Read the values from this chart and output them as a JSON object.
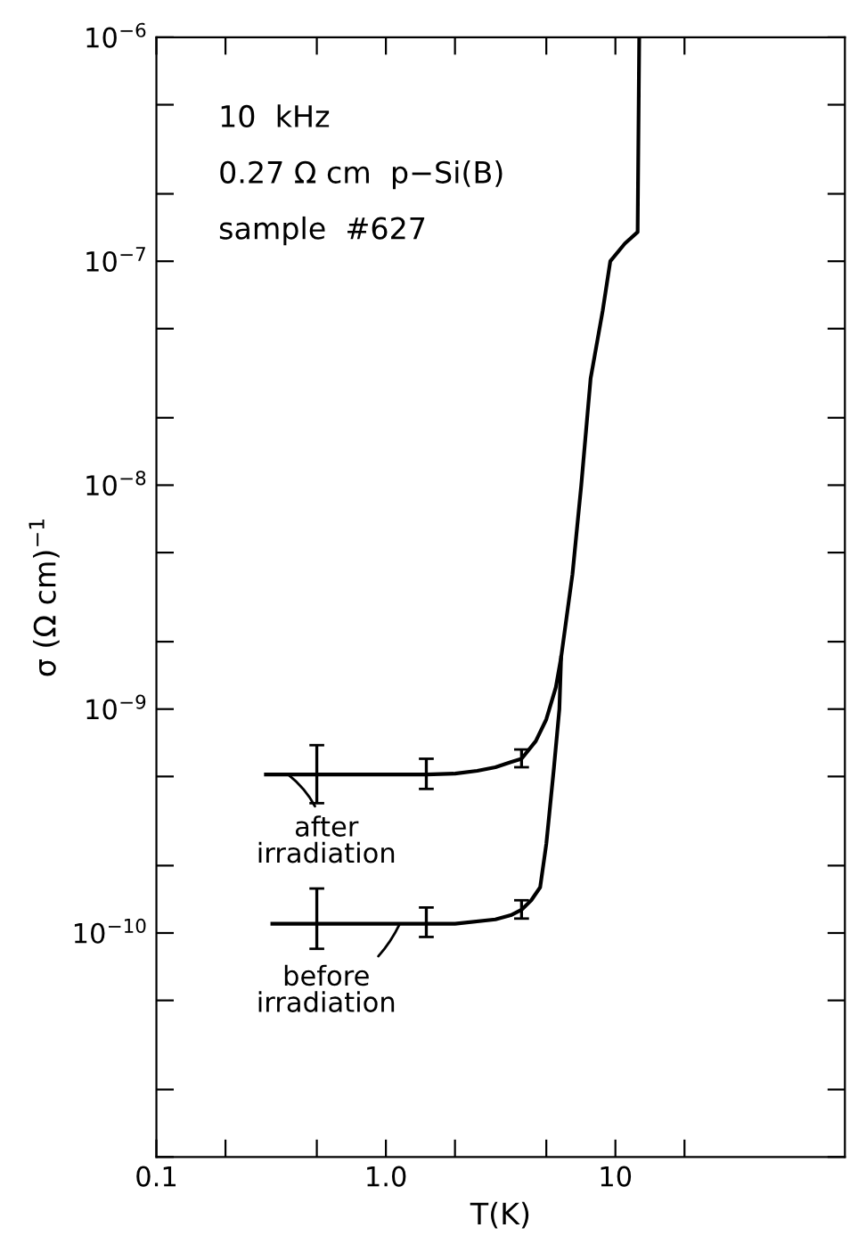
{
  "chart_data": {
    "type": "line",
    "xlabel": "T(K)",
    "ylabel": "σ (Ω cm)$^{−1}$",
    "log": "xy",
    "annotations": [
      "10  kHz",
      "0.27 Ω cm  p−Si(B)",
      "sample  #627"
    ],
    "xlim": [
      0.1,
      100
    ],
    "ylim": [
      1e-11,
      1e-06
    ],
    "xticks": [
      {
        "value": 0.1,
        "label": "0.1"
      },
      {
        "value": 0.2,
        "label": null
      },
      {
        "value": 0.5,
        "label": null
      },
      {
        "value": 1,
        "label": "1.0"
      },
      {
        "value": 2,
        "label": null
      },
      {
        "value": 5,
        "label": null
      },
      10,
      {
        "value": 20,
        "label": null
      }
    ],
    "yticks": [
      {
        "value": 1e-11,
        "label": null
      },
      {
        "value": 2e-11,
        "label": null
      },
      {
        "value": 5e-11,
        "label": null
      },
      {
        "value": 1e-10,
        "label": "10$^{−10}$"
      },
      {
        "value": 2e-10,
        "label": null
      },
      {
        "value": 5e-10,
        "label": null
      },
      {
        "value": 1e-09,
        "label": "10$^{−9}$"
      },
      {
        "value": 2e-09,
        "label": null
      },
      {
        "value": 5e-09,
        "label": null
      },
      {
        "value": 1e-08,
        "label": "10$^{−8}$"
      },
      {
        "value": 2e-08,
        "label": null
      },
      {
        "value": 5e-08,
        "label": null
      },
      {
        "value": 1e-07,
        "label": "10$^{−7}$"
      },
      {
        "value": 2e-07,
        "label": null
      },
      {
        "value": 5e-07,
        "label": null
      },
      {
        "value": 1e-06,
        "label": "10$^{−6}$"
      }
    ],
    "grid": false,
    "legend": "bottom left",
    "line_style": "solid",
    "marker": "none",
    "series": [
      {
        "name": "after irradiation",
        "color": "#000000",
        "x": [
          0.3,
          0.5,
          1,
          1.5,
          2,
          2.5,
          3,
          3.5,
          3.9,
          4.5,
          5,
          5.5,
          5.8,
          6.5,
          7.1,
          7.8,
          8.8,
          9.5,
          11,
          12.5,
          12.7
        ],
        "values": [
          5.1e-10,
          5.1e-10,
          5.1e-10,
          5.1e-10,
          5.15e-10,
          5.3e-10,
          5.5e-10,
          5.8e-10,
          6e-10,
          7.2e-10,
          9e-10,
          1.25e-09,
          1.7e-09,
          4e-09,
          1e-08,
          3e-08,
          6e-08,
          1e-07,
          1.2e-07,
          1.35e-07,
          1e-06
        ],
        "errors": [
          null,
          [
            3.8e-10,
            6.9e-10
          ],
          null,
          [
            4.4e-10,
            6e-10
          ],
          null,
          null,
          null,
          null,
          [
            5.5e-10,
            6.6e-10
          ],
          null,
          null,
          null,
          null,
          null,
          null,
          null,
          null,
          null,
          null,
          null,
          null
        ]
      },
      {
        "name": "before irradiation",
        "color": "#000000",
        "x": [
          0.32,
          0.5,
          1,
          1.5,
          2,
          3,
          3.5,
          3.9,
          4.3,
          4.7,
          5.0,
          5.4,
          5.7,
          5.8
        ],
        "values": [
          1.1e-10,
          1.1e-10,
          1.1e-10,
          1.1e-10,
          1.1e-10,
          1.15e-10,
          1.2e-10,
          1.27e-10,
          1.4e-10,
          1.6e-10,
          2.5e-10,
          5.5e-10,
          1e-09,
          1.7e-09
        ],
        "errors": [
          null,
          [
            8.5e-11,
            1.58e-10
          ],
          null,
          [
            9.6e-11,
            1.3e-10
          ],
          null,
          null,
          null,
          [
            1.16e-10,
            1.4e-10
          ],
          null,
          null,
          null,
          null,
          null,
          null
        ]
      }
    ]
  }
}
